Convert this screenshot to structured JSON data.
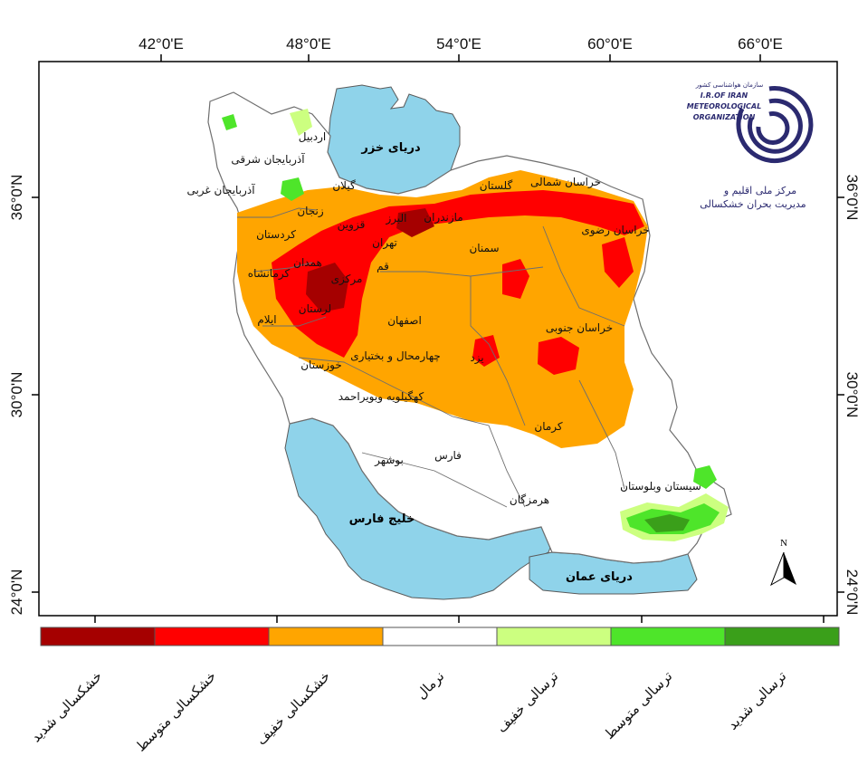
{
  "map": {
    "longitude_ticks": [
      "42°0'E",
      "48°0'E",
      "54°0'E",
      "60°0'E",
      "66°0'E"
    ],
    "latitude_ticks_left": [
      "36°0'N",
      "30°0'N",
      "24°0'N"
    ],
    "latitude_ticks_right": [
      "36°0'N",
      "30°0'N",
      "24°0'N"
    ],
    "north_arrow": "N",
    "seas": {
      "caspian": "دریای خزر",
      "persian_gulf": "خلیج فارس",
      "oman_sea": "دریای عمان"
    },
    "provinces": [
      "اردبیل",
      "آذربایجان شرقی",
      "آذربایجان غربی",
      "زنجان",
      "گیلان",
      "کردستان",
      "همدان",
      "کرمانشاه",
      "لرستان",
      "ایلام",
      "خوزستان",
      "مرکزی",
      "قم",
      "تهران",
      "البرز",
      "قزوین",
      "مازندران",
      "گلستان",
      "خراسان شمالی",
      "خراسان رضوی",
      "سمنان",
      "اصفهان",
      "چهارمحال و بختیاری",
      "کهگیلویه وبویراحمد",
      "یزد",
      "خراسان جنوبی",
      "کرمان",
      "فارس",
      "بوشهر",
      "هرمزگان",
      "سیستان وبلوستان"
    ]
  },
  "logo": {
    "title_fa": "سازمان هواشناسی کشور",
    "line1": "I.R.OF IRAN",
    "line2": "METEOROLOGICAL",
    "line3": "ORGANIZATION",
    "subtitle1": "مرکز ملی اقلیم و",
    "subtitle2": "مدیریت بحران خشکسالی"
  },
  "legend": [
    {
      "label": "خشکسالی شدید",
      "color": "#a50000"
    },
    {
      "label": "خشکسالی متوسط",
      "color": "#ff0000"
    },
    {
      "label": "خشکسالی خفیف",
      "color": "#ffa500"
    },
    {
      "label": "نرمال",
      "color": "#ffffff"
    },
    {
      "label": "ترسالی خفیف",
      "color": "#ccff80"
    },
    {
      "label": "ترسالی متوسط",
      "color": "#4ee52a"
    },
    {
      "label": "ترسالی شدید",
      "color": "#3a9f1a"
    }
  ],
  "colors": {
    "sea": "#8fd3ea",
    "border": "#6e6e6e",
    "frame": "#000000",
    "logo": "#2b2a70"
  }
}
